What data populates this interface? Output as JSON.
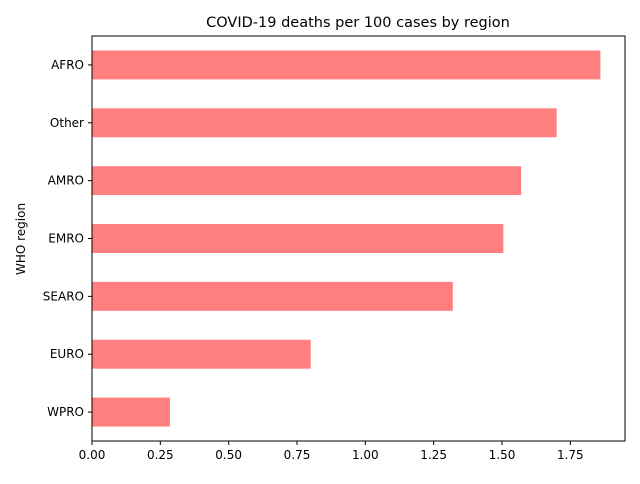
{
  "chart_data": {
    "type": "bar",
    "orientation": "horizontal",
    "title": "COVID-19 deaths per 100 cases by region",
    "xlabel": "",
    "ylabel": "WHO region",
    "categories": [
      "AFRO",
      "Other",
      "AMRO",
      "EMRO",
      "SEARO",
      "EURO",
      "WPRO"
    ],
    "values": [
      1.86,
      1.7,
      1.57,
      1.505,
      1.32,
      0.8,
      0.285
    ],
    "xlim": [
      0,
      1.95
    ],
    "xticks": [
      0.0,
      0.25,
      0.5,
      0.75,
      1.0,
      1.25,
      1.5,
      1.75
    ],
    "xtick_labels": [
      "0.00",
      "0.25",
      "0.50",
      "0.75",
      "1.00",
      "1.25",
      "1.50",
      "1.75"
    ],
    "bar_color": "#ff7f7f",
    "grid": false,
    "legend": "none"
  }
}
